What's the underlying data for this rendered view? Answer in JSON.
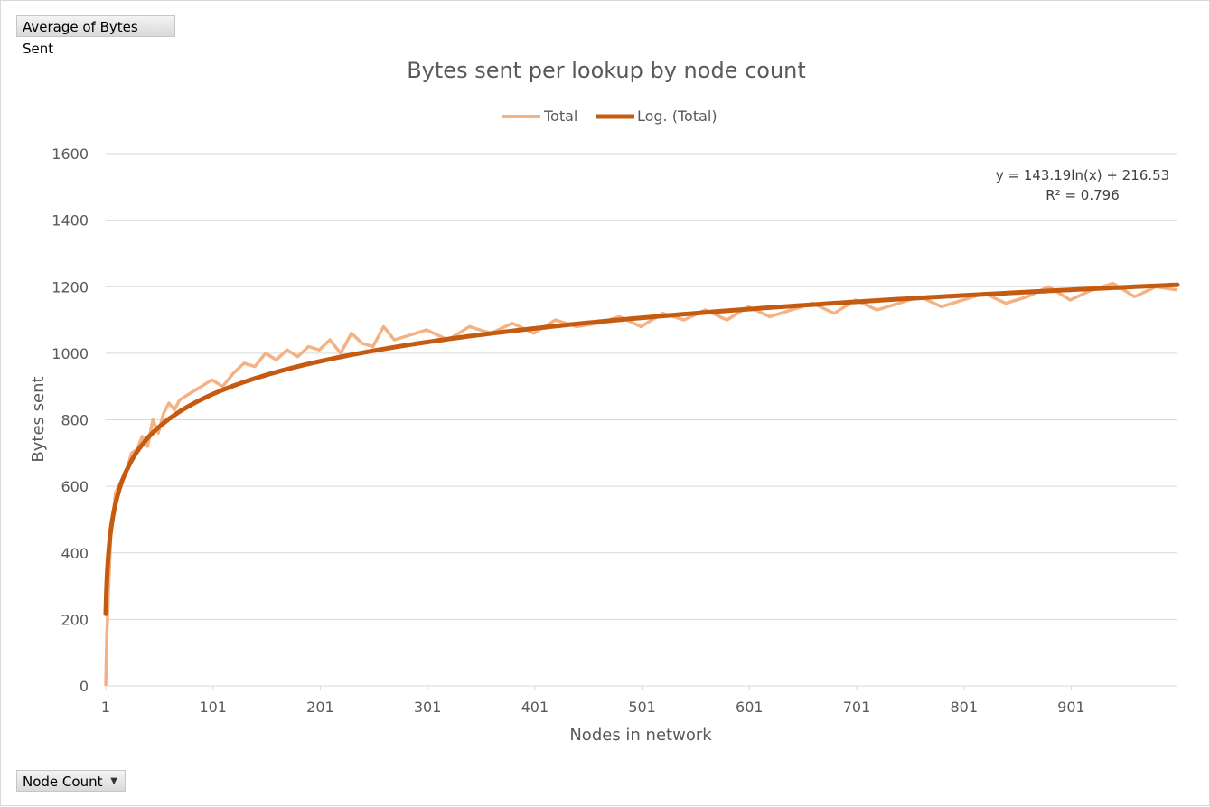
{
  "pivot": {
    "values_field_label": "Average of Bytes Sent",
    "axis_field_label": "Node Count",
    "axis_field_dropdown_icon": "chevron-down-icon"
  },
  "colors": {
    "total_series": "#f4b183",
    "trendline": "#c55a11",
    "gridline": "#d9d9d9",
    "text": "#595959"
  },
  "chart_data": {
    "type": "line",
    "title": "Bytes sent per lookup by node count",
    "xlabel": "Nodes in network",
    "ylabel": "Bytes sent",
    "x_range": [
      1,
      1000
    ],
    "x_tick_labels": [
      "1",
      "101",
      "201",
      "301",
      "401",
      "501",
      "601",
      "701",
      "801",
      "901"
    ],
    "ylim": [
      0,
      1600
    ],
    "y_tick_labels": [
      "0",
      "200",
      "400",
      "600",
      "800",
      "1000",
      "1200",
      "1400",
      "1600"
    ],
    "grid": true,
    "legend_position": "top",
    "legend": [
      "Total",
      "Log. (Total)"
    ],
    "series": [
      {
        "name": "Total",
        "x": [
          1,
          2,
          4,
          6,
          8,
          10,
          13,
          16,
          20,
          25,
          30,
          35,
          40,
          45,
          50,
          55,
          60,
          65,
          70,
          80,
          90,
          100,
          110,
          120,
          130,
          140,
          150,
          160,
          170,
          180,
          190,
          200,
          210,
          220,
          230,
          240,
          250,
          260,
          270,
          280,
          290,
          300,
          320,
          340,
          360,
          380,
          400,
          420,
          440,
          460,
          480,
          500,
          520,
          540,
          560,
          580,
          600,
          620,
          640,
          660,
          680,
          700,
          720,
          740,
          760,
          780,
          800,
          820,
          840,
          860,
          880,
          900,
          920,
          940,
          960,
          980,
          1000
        ],
        "values": [
          0,
          150,
          320,
          470,
          510,
          580,
          600,
          620,
          640,
          700,
          710,
          750,
          720,
          800,
          760,
          820,
          850,
          830,
          860,
          880,
          900,
          920,
          900,
          940,
          970,
          960,
          1000,
          980,
          1010,
          990,
          1020,
          1010,
          1040,
          1000,
          1060,
          1030,
          1020,
          1080,
          1040,
          1050,
          1060,
          1070,
          1040,
          1080,
          1060,
          1090,
          1060,
          1100,
          1080,
          1090,
          1110,
          1080,
          1120,
          1100,
          1130,
          1100,
          1140,
          1110,
          1130,
          1150,
          1120,
          1160,
          1130,
          1150,
          1170,
          1140,
          1160,
          1180,
          1150,
          1170,
          1200,
          1160,
          1190,
          1210,
          1170,
          1200,
          1190
        ]
      },
      {
        "name": "Log. (Total)",
        "trendline": "logarithmic",
        "equation": "y = 143.19ln(x) + 216.53",
        "r_squared": "R² = 0.796"
      }
    ]
  }
}
